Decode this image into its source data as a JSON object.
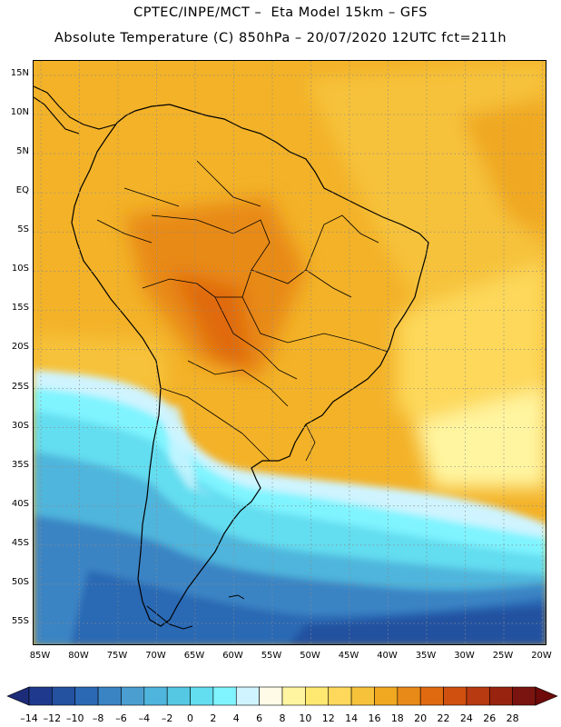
{
  "title": {
    "line1": "CPTEC/INPE/MCT –  Eta Model 15km – GFS",
    "line2": "Absolute Temperature (C) 850hPa – 20/07/2020 12UTC fct=211h"
  },
  "map": {
    "lat_labels": [
      "15N",
      "10N",
      "5N",
      "EQ",
      "5S",
      "10S",
      "15S",
      "20S",
      "25S",
      "30S",
      "35S",
      "40S",
      "45S",
      "50S",
      "55S"
    ],
    "lon_labels": [
      "85W",
      "80W",
      "75W",
      "70W",
      "65W",
      "60W",
      "55W",
      "50W",
      "45W",
      "40W",
      "35W",
      "30W",
      "25W",
      "20W"
    ],
    "grid": "dotted"
  },
  "colorbar": {
    "tick_labels": [
      "-14",
      "-12",
      "-10",
      "-8",
      "-6",
      "-4",
      "-2",
      "0",
      "2",
      "4",
      "6",
      "8",
      "10",
      "12",
      "14",
      "16",
      "18",
      "20",
      "22",
      "24",
      "26",
      "28"
    ],
    "colors": [
      "#1f3a8c",
      "#2451a0",
      "#2c69b4",
      "#3a84c4",
      "#4a9fd0",
      "#4fb5dc",
      "#55c8e4",
      "#63ddf0",
      "#7ff4ff",
      "#cff4ff",
      "#fffbe6",
      "#fff5a0",
      "#ffe870",
      "#fdd85a",
      "#f6c23a",
      "#f0a820",
      "#e88a18",
      "#e06a10",
      "#d05010",
      "#b83a10",
      "#982410",
      "#7a1410"
    ],
    "left_arrow_color": "#1c2c78",
    "right_arrow_color": "#6e0a0a"
  }
}
